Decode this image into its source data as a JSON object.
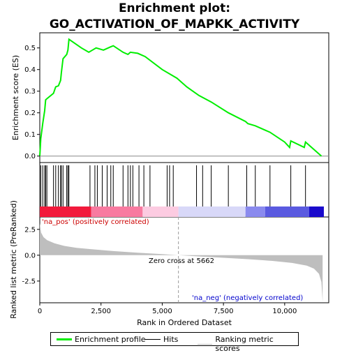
{
  "chart_data": {
    "type": "line",
    "title_line1": "Enrichment plot:",
    "title_line2": "GO_ACTIVATION_OF_MAPKK_ACTIVITY",
    "xlabel": "Rank in Ordered Dataset",
    "ylabel_top": "Enrichment score (ES)",
    "ylabel_bottom": "Ranked list metric (PreRanked)",
    "x_range": [
      0,
      11800
    ],
    "x_ticks": [
      0,
      2500,
      5000,
      7500,
      10000
    ],
    "x_tick_labels": [
      "0",
      "2,500",
      "5,000",
      "7,500",
      "10,000"
    ],
    "es_ylim": [
      -0.03,
      0.57
    ],
    "es_ticks": [
      0.0,
      0.1,
      0.2,
      0.3,
      0.4,
      0.5
    ],
    "es_tick_labels": [
      "0.0",
      "0.1",
      "0.2",
      "0.3",
      "0.4",
      "0.5"
    ],
    "metric_ylim": [
      -4.6,
      3.7
    ],
    "metric_ticks": [
      2.5,
      0.0,
      -2.5
    ],
    "metric_tick_labels": [
      "2.5",
      "0.0",
      "-2.5"
    ],
    "es_curve": [
      [
        0,
        0.0
      ],
      [
        40,
        0.08
      ],
      [
        120,
        0.15
      ],
      [
        200,
        0.21
      ],
      [
        240,
        0.26
      ],
      [
        290,
        0.265
      ],
      [
        560,
        0.29
      ],
      [
        650,
        0.32
      ],
      [
        760,
        0.325
      ],
      [
        850,
        0.35
      ],
      [
        880,
        0.385
      ],
      [
        950,
        0.45
      ],
      [
        1100,
        0.47
      ],
      [
        1150,
        0.49
      ],
      [
        1190,
        0.54
      ],
      [
        1700,
        0.5
      ],
      [
        2000,
        0.48
      ],
      [
        2300,
        0.5
      ],
      [
        2600,
        0.49
      ],
      [
        2900,
        0.505
      ],
      [
        3000,
        0.51
      ],
      [
        3400,
        0.48
      ],
      [
        3600,
        0.47
      ],
      [
        3700,
        0.48
      ],
      [
        4000,
        0.475
      ],
      [
        4300,
        0.46
      ],
      [
        5000,
        0.4
      ],
      [
        5600,
        0.36
      ],
      [
        6000,
        0.32
      ],
      [
        6500,
        0.28
      ],
      [
        7000,
        0.25
      ],
      [
        7700,
        0.2
      ],
      [
        8400,
        0.16
      ],
      [
        8500,
        0.15
      ],
      [
        8800,
        0.14
      ],
      [
        9400,
        0.11
      ],
      [
        10000,
        0.065
      ],
      [
        10200,
        0.04
      ],
      [
        10250,
        0.07
      ],
      [
        10800,
        0.04
      ],
      [
        10850,
        0.065
      ],
      [
        11500,
        0.0
      ]
    ],
    "hits": [
      40,
      120,
      200,
      240,
      290,
      560,
      650,
      760,
      850,
      880,
      950,
      1100,
      1150,
      1190,
      2050,
      2250,
      2350,
      2550,
      2750,
      2900,
      3000,
      3400,
      3600,
      3700,
      3800,
      4050,
      4250,
      4500,
      5200,
      5300,
      5450,
      6400,
      6650,
      7000,
      7700,
      8450,
      8800,
      9400,
      10250,
      10850
    ],
    "heat_segments": [
      {
        "from": 0,
        "to": 2100,
        "color": "#f21a3c"
      },
      {
        "from": 2100,
        "to": 4200,
        "color": "#f87aa0"
      },
      {
        "from": 4200,
        "to": 5662,
        "color": "#fccbe1"
      },
      {
        "from": 5662,
        "to": 8400,
        "color": "#d8d8f8"
      },
      {
        "from": 8400,
        "to": 9200,
        "color": "#8a8aee"
      },
      {
        "from": 9200,
        "to": 11000,
        "color": "#5a5ae0"
      },
      {
        "from": 11000,
        "to": 11600,
        "color": "#1a0acc"
      }
    ],
    "metric_profile": [
      [
        0,
        3.1
      ],
      [
        50,
        2.2
      ],
      [
        150,
        1.75
      ],
      [
        300,
        1.45
      ],
      [
        600,
        1.15
      ],
      [
        1000,
        0.9
      ],
      [
        1500,
        0.72
      ],
      [
        2000,
        0.6
      ],
      [
        3000,
        0.4
      ],
      [
        4000,
        0.24
      ],
      [
        5000,
        0.1
      ],
      [
        5662,
        0.0
      ],
      [
        6500,
        -0.12
      ],
      [
        7500,
        -0.25
      ],
      [
        8500,
        -0.38
      ],
      [
        9500,
        -0.55
      ],
      [
        10300,
        -0.75
      ],
      [
        10900,
        -1.0
      ],
      [
        11200,
        -1.3
      ],
      [
        11400,
        -1.8
      ],
      [
        11500,
        -2.6
      ],
      [
        11550,
        -4.5
      ]
    ],
    "zero_cross_x": 5662,
    "zero_cross_label": "Zero cross at 5662",
    "pos_label": "'na_pos' (positively correlated)",
    "neg_label": "'na_neg' (negatively correlated)",
    "legend": {
      "enrichment_profile": "Enrichment profile",
      "hits": "Hits",
      "ranking_metric": "Ranking metric scores"
    },
    "colors": {
      "es_line": "#00ee00",
      "hits": "#000000",
      "metric_fill": "#bebebe",
      "pos_label": "#cc0000",
      "neg_label": "#0000cc"
    }
  }
}
